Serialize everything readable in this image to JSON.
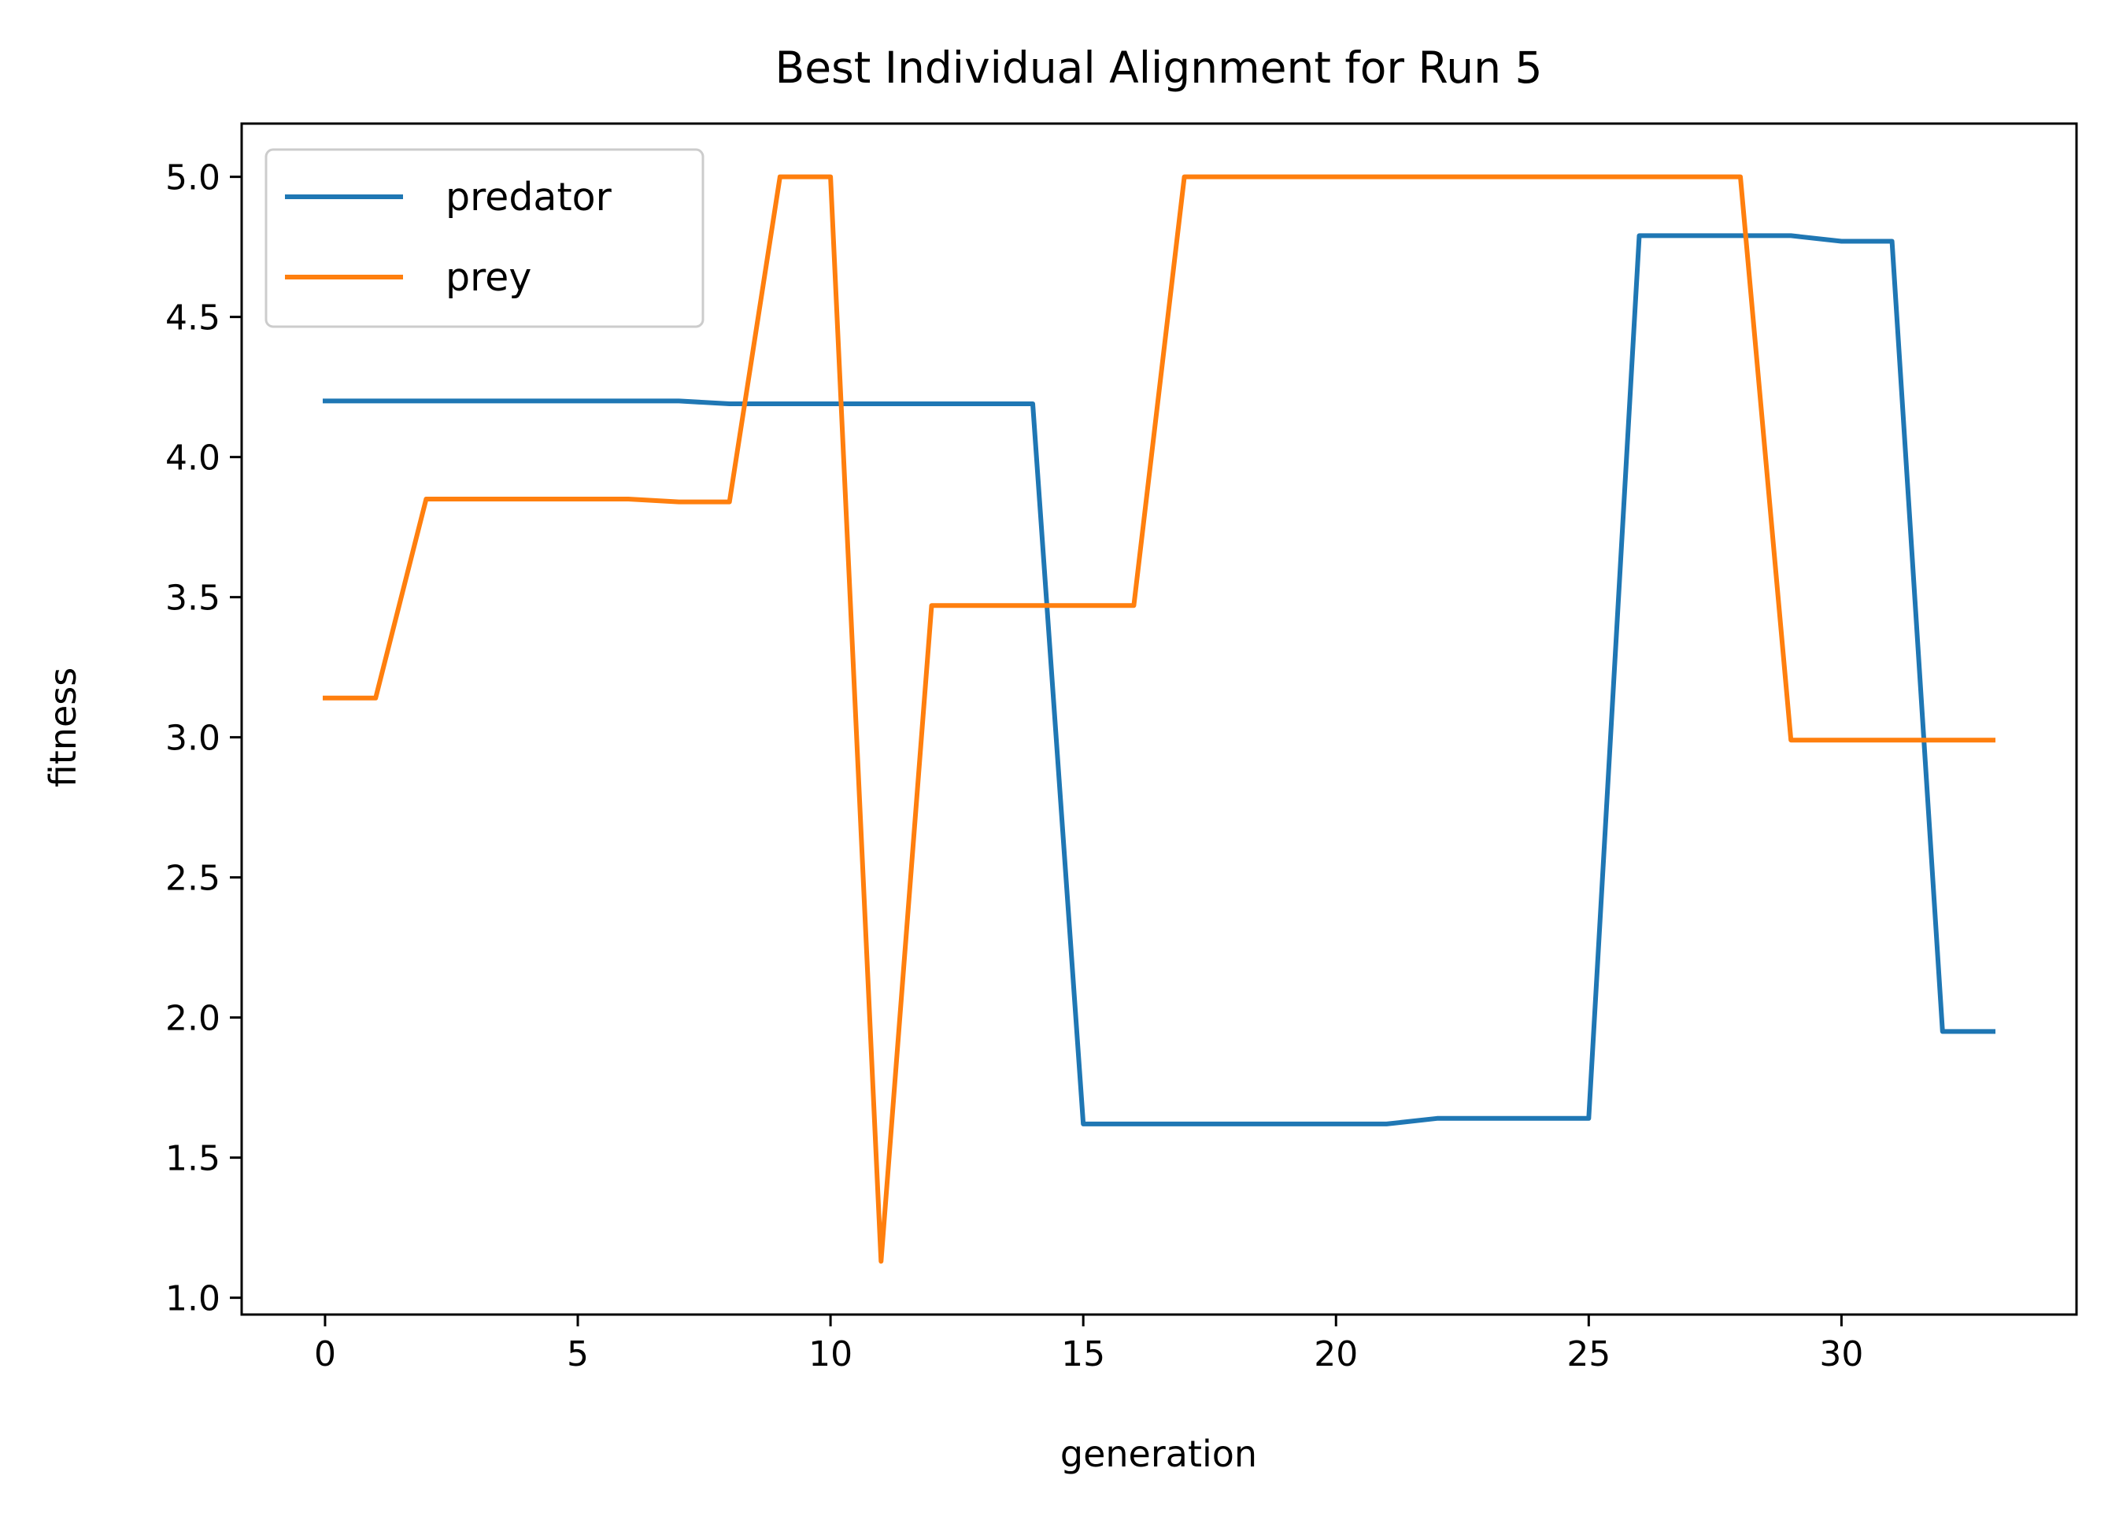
{
  "chart_data": {
    "type": "line",
    "title": "Best Individual Alignment for Run 5",
    "xlabel": "generation",
    "ylabel": "fitness",
    "xlim": [
      -1.65,
      34.65
    ],
    "ylim": [
      0.94,
      5.19
    ],
    "xticks": [
      0,
      5,
      10,
      15,
      20,
      25,
      30
    ],
    "xtick_labels": [
      "0",
      "5",
      "10",
      "15",
      "20",
      "25",
      "30"
    ],
    "yticks": [
      1.0,
      1.5,
      2.0,
      2.5,
      3.0,
      3.5,
      4.0,
      4.5,
      5.0
    ],
    "ytick_labels": [
      "1.0",
      "1.5",
      "2.0",
      "2.5",
      "3.0",
      "3.5",
      "4.0",
      "4.5",
      "5.0"
    ],
    "grid": false,
    "legend": "upper left",
    "x": [
      0,
      1,
      2,
      3,
      4,
      5,
      6,
      7,
      8,
      9,
      10,
      11,
      12,
      13,
      14,
      15,
      16,
      17,
      18,
      19,
      20,
      21,
      22,
      23,
      24,
      25,
      26,
      27,
      28,
      29,
      30,
      31,
      32,
      33
    ],
    "series": [
      {
        "name": "predator",
        "color": "#1f77b4",
        "values": [
          4.2,
          4.2,
          4.2,
          4.2,
          4.2,
          4.2,
          4.2,
          4.2,
          4.19,
          4.19,
          4.19,
          4.19,
          4.19,
          4.19,
          4.19,
          1.62,
          1.62,
          1.62,
          1.62,
          1.62,
          1.62,
          1.62,
          1.64,
          1.64,
          1.64,
          1.64,
          4.79,
          4.79,
          4.79,
          4.79,
          4.77,
          4.77,
          1.95,
          1.95
        ]
      },
      {
        "name": "prey",
        "color": "#ff7f0e",
        "values": [
          3.14,
          3.14,
          3.85,
          3.85,
          3.85,
          3.85,
          3.85,
          3.84,
          3.84,
          5.0,
          5.0,
          1.13,
          3.47,
          3.47,
          3.47,
          3.47,
          3.47,
          5.0,
          5.0,
          5.0,
          5.0,
          5.0,
          5.0,
          5.0,
          5.0,
          5.0,
          5.0,
          5.0,
          5.0,
          2.99,
          2.99,
          2.99,
          2.99,
          2.99
        ]
      }
    ]
  }
}
